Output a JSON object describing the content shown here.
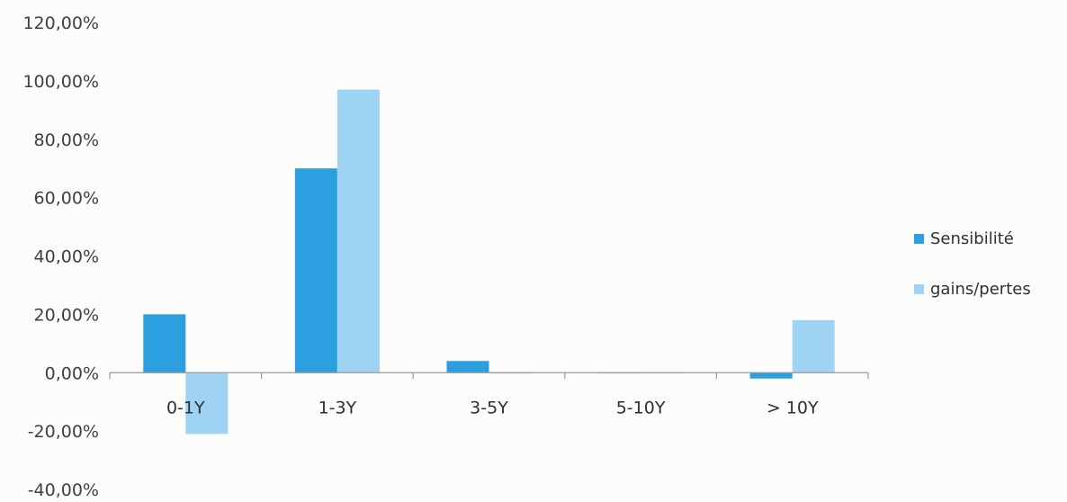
{
  "chart_data": {
    "type": "bar",
    "title": "",
    "xlabel": "",
    "ylabel": "",
    "categories": [
      "0-1Y",
      "1-3Y",
      "3-5Y",
      "5-10Y",
      "> 10Y"
    ],
    "series": [
      {
        "name": "Sensibilité",
        "color": "#2b9fe0",
        "values": [
          20,
          70,
          4,
          0,
          -2
        ]
      },
      {
        "name": "gains/pertes",
        "color": "#9fd3f4",
        "values": [
          -21,
          97,
          -0.3,
          0,
          18
        ]
      }
    ],
    "y_ticks": [
      "120,00%",
      "100,00%",
      "80,00%",
      "60,00%",
      "40,00%",
      "20,00%",
      "0,00%",
      "-20,00%",
      "-40,00%"
    ],
    "y_tick_values": [
      120,
      100,
      80,
      60,
      40,
      20,
      0,
      -20,
      -40
    ],
    "ylim": [
      -40,
      120
    ],
    "y_unit": "%",
    "grid": false,
    "legend_position": "right"
  }
}
